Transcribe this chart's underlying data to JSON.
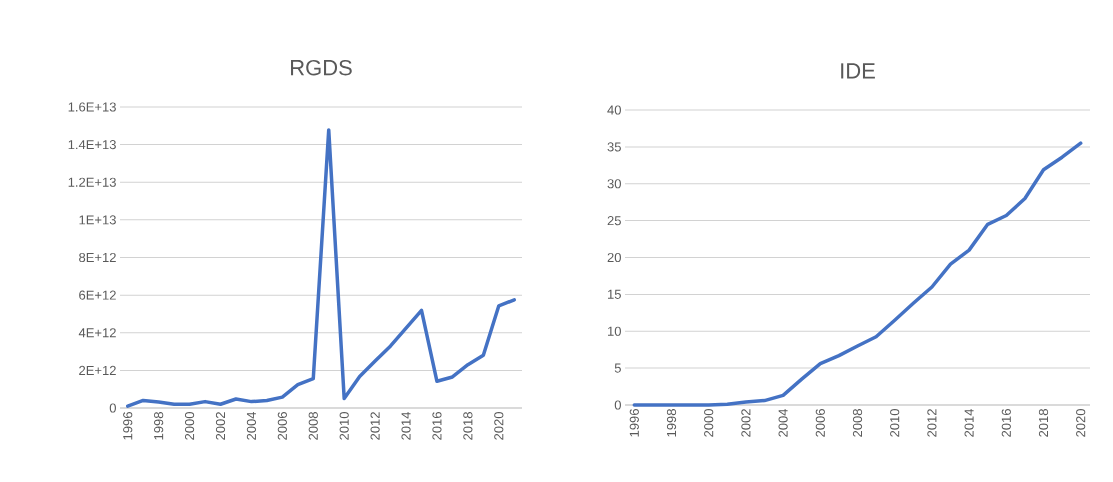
{
  "chart_data": [
    {
      "type": "line",
      "title": "RGDS",
      "categories": [
        "1996",
        null,
        "1998",
        null,
        "2000",
        null,
        "2002",
        null,
        "2004",
        null,
        "2006",
        null,
        "2008",
        null,
        "2010",
        null,
        "2012",
        null,
        "2014",
        null,
        "2016",
        null,
        "2018",
        null,
        "2020",
        null
      ],
      "values": [
        100000000000.0,
        400000000000.0,
        320000000000.0,
        200000000000.0,
        200000000000.0,
        340000000000.0,
        200000000000.0,
        480000000000.0,
        340000000000.0,
        400000000000.0,
        580000000000.0,
        1240000000000.0,
        1560000000000.0,
        14780000000000.0,
        500000000000.0,
        1680000000000.0,
        2500000000000.0,
        3300000000000.0,
        4250000000000.0,
        5190000000000.0,
        1420000000000.0,
        1650000000000.0,
        2300000000000.0,
        2800000000000.0,
        5430000000000.0,
        5750000000000.0
      ],
      "color": "#4472c4",
      "ylim": [
        0,
        16000000000000.0
      ],
      "yticks": [
        0,
        {
          "value": 2000000000000.0,
          "label": "2E+12"
        },
        {
          "value": 4000000000000.0,
          "label": "4E+12"
        },
        {
          "value": 6000000000000.0,
          "label": "6E+12"
        },
        {
          "value": 8000000000000.0,
          "label": "8E+12"
        },
        {
          "value": 10000000000000.0,
          "label": "1E+13"
        },
        {
          "value": 12000000000000.0,
          "label": "1.2E+13"
        },
        {
          "value": 14000000000000.0,
          "label": "1.4E+13"
        },
        {
          "value": 16000000000000.0,
          "label": "1.6E+13"
        }
      ],
      "grid": "y"
    },
    {
      "type": "line",
      "title": "IDE",
      "categories": [
        "1996",
        null,
        "1998",
        null,
        "2000",
        null,
        "2002",
        null,
        "2004",
        null,
        "2006",
        null,
        "2008",
        null,
        "2010",
        null,
        "2012",
        null,
        "2014",
        null,
        "2016",
        null,
        "2018",
        null,
        "2020"
      ],
      "values": [
        0,
        0,
        0,
        0,
        0,
        0.1,
        0.4,
        0.6,
        1.3,
        3.5,
        5.6,
        6.7,
        8.0,
        9.25,
        11.5,
        13.8,
        16.0,
        19.1,
        21.0,
        24.5,
        25.7,
        28.0,
        31.9,
        33.6,
        35.5
      ],
      "color": "#4472c4",
      "ylim": [
        0,
        40
      ],
      "yticks": [
        0,
        5,
        10,
        15,
        20,
        25,
        30,
        35,
        40
      ],
      "grid": "y"
    }
  ]
}
